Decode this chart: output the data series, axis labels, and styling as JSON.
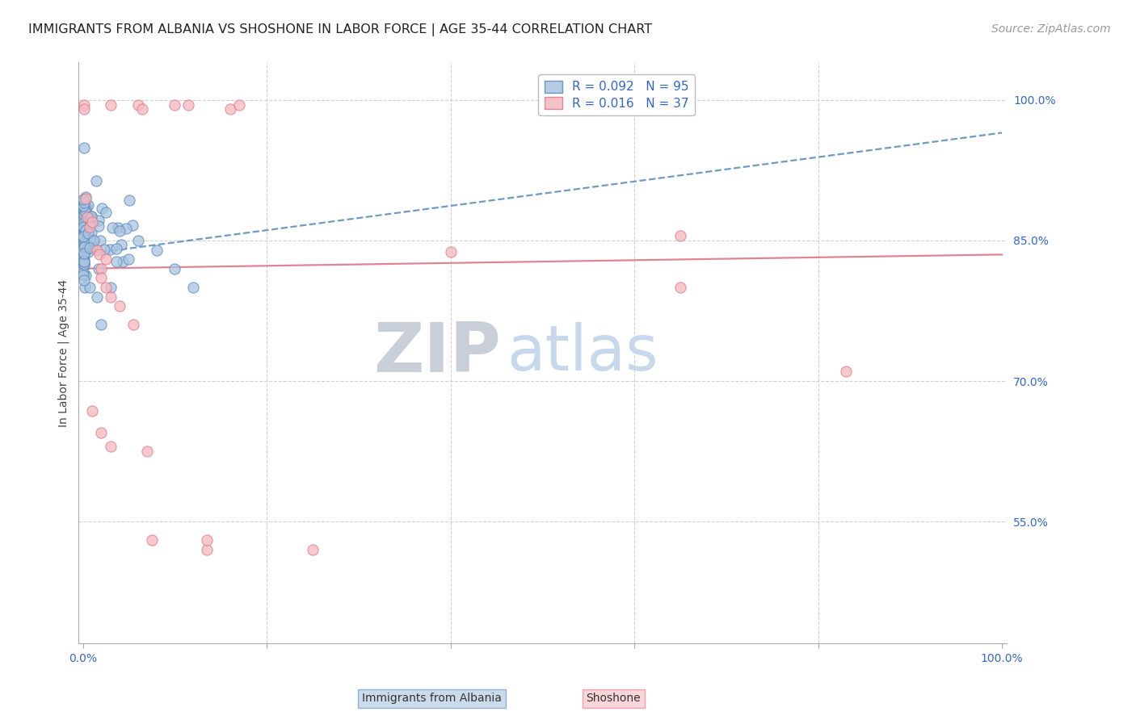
{
  "title": "IMMIGRANTS FROM ALBANIA VS SHOSHONE IN LABOR FORCE | AGE 35-44 CORRELATION CHART",
  "source": "Source: ZipAtlas.com",
  "ylabel": "In Labor Force | Age 35-44",
  "xlim": [
    -0.005,
    1.005
  ],
  "ylim": [
    0.42,
    1.04
  ],
  "yticks_right": [
    0.55,
    0.7,
    0.85,
    1.0
  ],
  "yticklabels_right": [
    "55.0%",
    "70.0%",
    "85.0%",
    "100.0%"
  ],
  "xtick_vals": [
    0.0,
    0.2,
    0.4,
    0.6,
    0.8,
    1.0
  ],
  "xticklabels": [
    "0.0%",
    "",
    "",
    "",
    "",
    "100.0%"
  ],
  "grid_color": "#d0d0d0",
  "albania_color": "#aac4e0",
  "albania_edge": "#5588bb",
  "albania_fill": "#6699cc",
  "shoshone_color": "#f5b8c0",
  "shoshone_edge": "#dd7788",
  "albania_R": 0.092,
  "albania_N": 95,
  "shoshone_R": 0.016,
  "shoshone_N": 37,
  "title_fontsize": 11.5,
  "tick_fontsize": 10,
  "legend_fontsize": 11,
  "source_fontsize": 10,
  "tick_color": "#3366cc",
  "background_color": "#ffffff",
  "watermark_zip_color": "#c8cfd8",
  "watermark_atlas_color": "#c8d8ec"
}
